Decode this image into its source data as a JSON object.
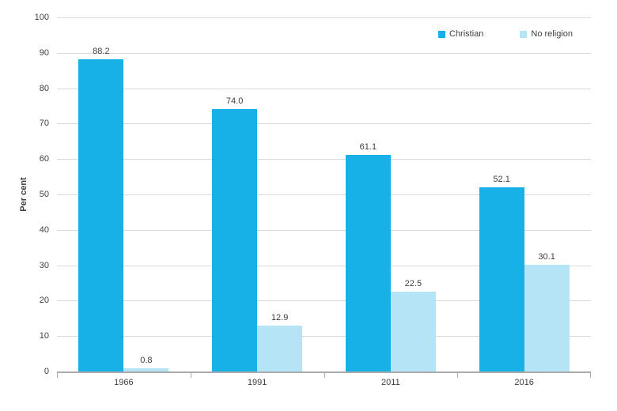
{
  "chart_data": {
    "type": "bar",
    "title": "",
    "ylabel": "Per cent",
    "xlabel": "",
    "categories": [
      "1966",
      "1991",
      "2011",
      "2016"
    ],
    "series": [
      {
        "name": "Christian",
        "color": "#17b1e8",
        "values": [
          88.2,
          74.0,
          61.1,
          52.1
        ]
      },
      {
        "name": "No religion",
        "color": "#b5e4f7",
        "values": [
          0.8,
          12.9,
          22.5,
          30.1
        ]
      }
    ],
    "value_label_decimals": 1,
    "ylim": [
      0,
      100
    ],
    "ytick_step": 10,
    "ytick_labels": [
      "0",
      "10",
      "20",
      "30",
      "40",
      "50",
      "60",
      "70",
      "80",
      "90",
      "100"
    ],
    "grid": true,
    "legend_position": "top-right",
    "colors": {
      "grid": "#d9d9d9",
      "axis": "#ababab",
      "text": "#404040",
      "background": "#ffffff"
    }
  }
}
